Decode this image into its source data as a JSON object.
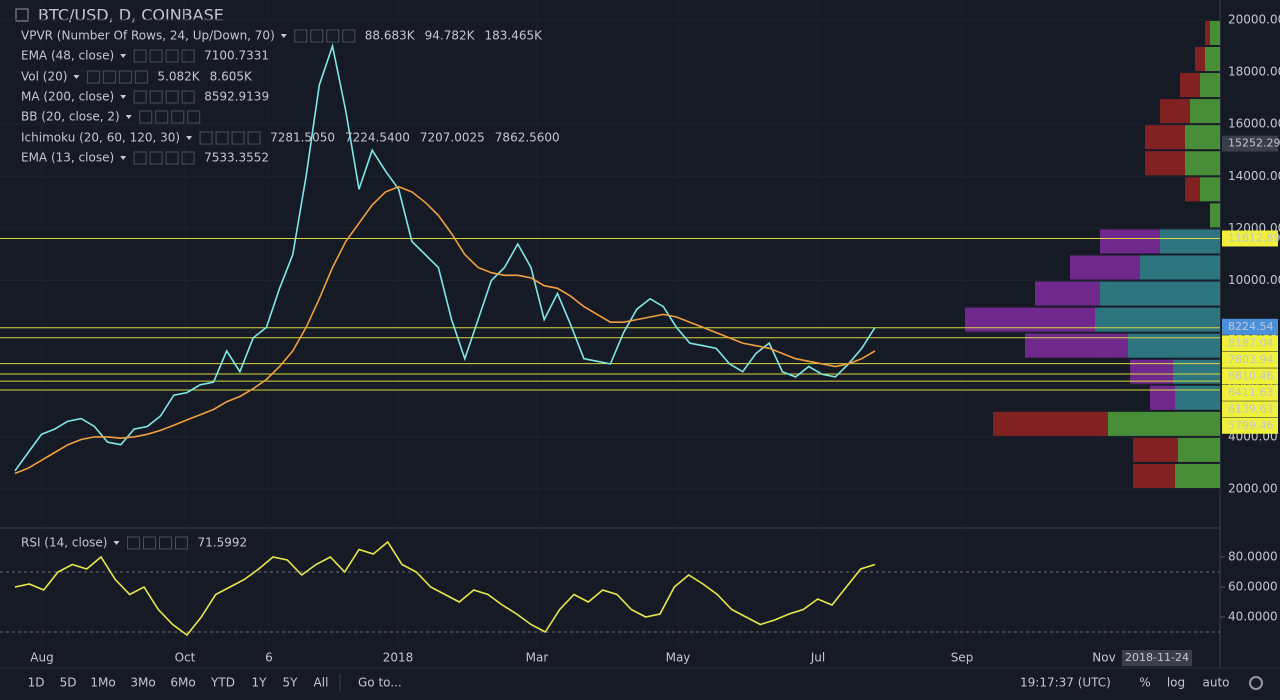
{
  "header": {
    "symbol": "BTC/USD, D, COINBASE"
  },
  "legend": [
    {
      "name": "VPVR (Number Of Rows, 24, Up/Down, 70)",
      "readouts": [
        "88.683K",
        "94.782K",
        "183.465K"
      ]
    },
    {
      "name": "Vol (20)",
      "readouts": [
        "5.082K",
        "8.605K"
      ]
    },
    {
      "name": "MA (200, close)",
      "readouts": [
        "8592.9139"
      ]
    },
    {
      "name": "BB (20, close, 2)",
      "readouts": []
    },
    {
      "name": "Ichimoku (20, 60, 120, 30)",
      "readouts": [
        "7281.5050",
        "7224.5400",
        "7207.0025",
        "7862.5600"
      ]
    }
  ],
  "chart_data": [
    {
      "type": "line",
      "series": [
        {
          "name": "EMA (13, close)",
          "color": "#7ee8e6",
          "readout": "7533.3552",
          "values": [
            2700,
            3400,
            4100,
            4300,
            4600,
            4700,
            4400,
            3800,
            3700,
            4300,
            4400,
            4800,
            5600,
            5700,
            6000,
            6100,
            7300,
            6500,
            7800,
            8200,
            9700,
            11000,
            14000,
            17500,
            19000,
            16500,
            13500,
            15000,
            14200,
            13500,
            11500,
            11000,
            10500,
            8500,
            7000,
            8500,
            10000,
            10500,
            11400,
            10500,
            8500,
            9500,
            8300,
            7000,
            6900,
            6800,
            8000,
            8900,
            9300,
            9000,
            8200,
            7600,
            7500,
            7400,
            6800,
            6500,
            7200,
            7600,
            6500,
            6300,
            6700,
            6400,
            6300,
            6800,
            7400,
            8200
          ]
        },
        {
          "name": "EMA (48, close)",
          "color": "#f0a040",
          "readout": "7100.7331",
          "values": [
            2600,
            2800,
            3100,
            3400,
            3700,
            3900,
            4000,
            4000,
            3950,
            4000,
            4100,
            4250,
            4450,
            4650,
            4850,
            5050,
            5350,
            5550,
            5850,
            6200,
            6700,
            7300,
            8200,
            9300,
            10500,
            11500,
            12200,
            12900,
            13400,
            13600,
            13400,
            13000,
            12500,
            11800,
            11000,
            10500,
            10300,
            10200,
            10200,
            10100,
            9800,
            9700,
            9400,
            9000,
            8700,
            8400,
            8400,
            8500,
            8600,
            8700,
            8600,
            8400,
            8200,
            8000,
            7800,
            7600,
            7500,
            7400,
            7200,
            7000,
            6900,
            6800,
            6700,
            6800,
            7000,
            7300
          ]
        }
      ],
      "ylim": [
        542,
        20764
      ],
      "yticks": [
        {
          "value": 2000,
          "label": "2000.00"
        },
        {
          "value": 4000,
          "label": "4000.00"
        },
        {
          "value": 6000,
          "label": "6000.00"
        },
        {
          "value": 8000,
          "label": "8000.00"
        },
        {
          "value": 10000,
          "label": "10000.00"
        },
        {
          "value": 12000,
          "label": "12000.00"
        },
        {
          "value": 14000,
          "label": "14000.00"
        },
        {
          "value": 16000,
          "label": "16000.00"
        },
        {
          "value": 18000,
          "label": "18000.00"
        },
        {
          "value": 20000,
          "label": "20000.00"
        }
      ],
      "grid": true,
      "cursor_price": 15252.29,
      "last_price": 8224.54,
      "levels": [
        11612.89,
        8187.04,
        7803.94,
        6810.46,
        6411.63,
        6139.63,
        5799.46
      ],
      "volume_profile": {
        "bins": [
          2000,
          3000,
          4000,
          5000,
          6000,
          7000,
          8000,
          9000,
          10000,
          11000,
          12000,
          13000,
          14000,
          15000,
          16000,
          17000,
          18000,
          19000,
          20000
        ],
        "up": [
          45,
          42,
          112,
          45,
          47,
          92,
          125,
          120,
          80,
          60,
          10,
          20,
          35,
          35,
          30,
          20,
          15,
          10
        ],
        "down": [
          42,
          45,
          115,
          25,
          43,
          103,
          130,
          65,
          70,
          60,
          0,
          15,
          40,
          40,
          30,
          20,
          10,
          5
        ],
        "value_area": [
          5000,
          12000
        ]
      }
    },
    {
      "type": "line",
      "series": [
        {
          "name": "RSI (14, close)",
          "color": "#e8e84a",
          "readout": "71.5992",
          "values": [
            60,
            62,
            58,
            70,
            75,
            72,
            80,
            65,
            55,
            60,
            45,
            35,
            28,
            40,
            55,
            60,
            65,
            72,
            80,
            78,
            68,
            75,
            80,
            70,
            85,
            82,
            90,
            75,
            70,
            60,
            55,
            50,
            58,
            55,
            48,
            42,
            35,
            30,
            45,
            55,
            50,
            58,
            55,
            45,
            40,
            42,
            60,
            68,
            62,
            55,
            45,
            40,
            35,
            38,
            42,
            45,
            52,
            48,
            60,
            72,
            75
          ]
        }
      ],
      "ylim": [
        18,
        98
      ],
      "yticks": [
        {
          "value": 40,
          "label": "40.0000"
        },
        {
          "value": 60,
          "label": "60.0000"
        },
        {
          "value": 80,
          "label": "80.0000"
        }
      ],
      "bands": [
        30,
        70
      ]
    }
  ],
  "time_axis": {
    "labels": [
      "Aug",
      "Oct",
      "6",
      "2018",
      "Mar",
      "May",
      "Jul",
      "Sep",
      "Nov"
    ],
    "cursor_date": "2018-11-24"
  },
  "toolbar": {
    "ranges": [
      "1D",
      "5D",
      "1Mo",
      "3Mo",
      "6Mo",
      "YTD",
      "1Y",
      "5Y",
      "All"
    ],
    "goto": "Go to...",
    "clock": "19:17:37 (UTC)",
    "options": [
      "%",
      "log",
      "auto"
    ]
  }
}
